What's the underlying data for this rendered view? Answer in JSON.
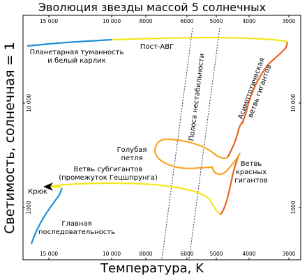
{
  "title": "Эволюция звезды массой 5 солнечных",
  "axes": {
    "x_label": "Температура, K",
    "y_label": "Светимость, солнечная = 1",
    "x_ticks": [
      "15 000",
      "10 000",
      "8000",
      "6000",
      "5000",
      "4000",
      "3000"
    ],
    "y_ticks": [
      "10 000",
      "1000"
    ]
  },
  "annotations": {
    "pn_line1": "Планетарная туманность",
    "pn_line2": "и белый карлик",
    "post_agb": "Пост-АВГ",
    "instability_strip": "Полоса нестабильности",
    "agb_line1": "Асимптотическая",
    "agb_line2": "ветвь гигантов",
    "blue_loop_line1": "Голубая",
    "blue_loop_line2": "петля",
    "subgiant_line1": "Ветвь субгигантов",
    "subgiant_line2": "(промежуток Гецшпрунга)",
    "hook": "Крюк",
    "rgb_line1": "Ветвь",
    "rgb_line2": "красных",
    "rgb_line3": "гигантов",
    "ms_line1": "Главная",
    "ms_line2": "последовательность"
  },
  "colors": {
    "main_sequence": "#1e90d8",
    "subgiant": "#f5e61e",
    "blue_loop": "#f5a623",
    "giant_branch": "#e8641e",
    "white_dwarf": "#1e90d8",
    "frame": "#000000",
    "instability_strip": "#333333"
  },
  "hook_icon": "arrow-left-icon"
}
